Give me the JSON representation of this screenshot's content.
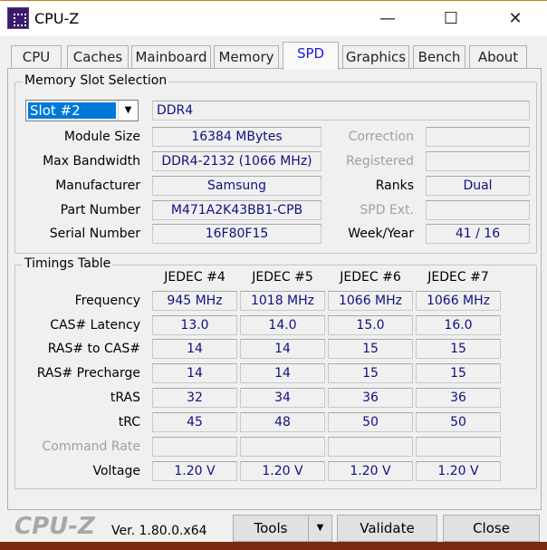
{
  "window": {
    "title": "CPU-Z",
    "minimize": "—",
    "maximize": "☐",
    "close": "✕"
  },
  "tabs": [
    {
      "label": "CPU"
    },
    {
      "label": "Caches"
    },
    {
      "label": "Mainboard"
    },
    {
      "label": "Memory"
    },
    {
      "label": "SPD",
      "active": true
    },
    {
      "label": "Graphics"
    },
    {
      "label": "Bench"
    },
    {
      "label": "About"
    }
  ],
  "slot": {
    "group_label": "Memory Slot Selection",
    "selected": "Slot #2",
    "type": "DDR4",
    "left": [
      {
        "label": "Module Size",
        "value": "16384 MBytes"
      },
      {
        "label": "Max Bandwidth",
        "value": "DDR4-2132 (1066 MHz)"
      },
      {
        "label": "Manufacturer",
        "value": "Samsung"
      },
      {
        "label": "Part Number",
        "value": "M471A2K43BB1-CPB"
      },
      {
        "label": "Serial Number",
        "value": "16F80F15"
      }
    ],
    "right": [
      {
        "label": "Correction",
        "value": "",
        "disabled": true
      },
      {
        "label": "Registered",
        "value": "",
        "disabled": true
      },
      {
        "label": "Ranks",
        "value": "Dual"
      },
      {
        "label": "SPD Ext.",
        "value": "",
        "disabled": true
      },
      {
        "label": "Week/Year",
        "value": "41 / 16"
      }
    ]
  },
  "timings": {
    "group_label": "Timings Table",
    "columns": [
      "JEDEC #4",
      "JEDEC #5",
      "JEDEC #6",
      "JEDEC #7"
    ],
    "rows": [
      {
        "label": "Frequency",
        "values": [
          "945 MHz",
          "1018 MHz",
          "1066 MHz",
          "1066 MHz"
        ]
      },
      {
        "label": "CAS# Latency",
        "values": [
          "13.0",
          "14.0",
          "15.0",
          "16.0"
        ]
      },
      {
        "label": "RAS# to CAS#",
        "values": [
          "14",
          "14",
          "15",
          "15"
        ]
      },
      {
        "label": "RAS# Precharge",
        "values": [
          "14",
          "14",
          "15",
          "15"
        ]
      },
      {
        "label": "tRAS",
        "values": [
          "32",
          "34",
          "36",
          "36"
        ]
      },
      {
        "label": "tRC",
        "values": [
          "45",
          "48",
          "50",
          "50"
        ]
      },
      {
        "label": "Command Rate",
        "values": [
          "",
          "",
          "",
          ""
        ],
        "disabled": true
      },
      {
        "label": "Voltage",
        "values": [
          "1.20 V",
          "1.20 V",
          "1.20 V",
          "1.20 V"
        ]
      }
    ]
  },
  "footer": {
    "logo": "CPU-Z",
    "version": "Ver. 1.80.0.x64",
    "tools": "Tools",
    "tools_arrow": "▼",
    "validate": "Validate",
    "close": "Close"
  },
  "colors": {
    "value_text": "#101080",
    "selected_tab": "#1a1ae0",
    "selection": "#0078d7"
  }
}
